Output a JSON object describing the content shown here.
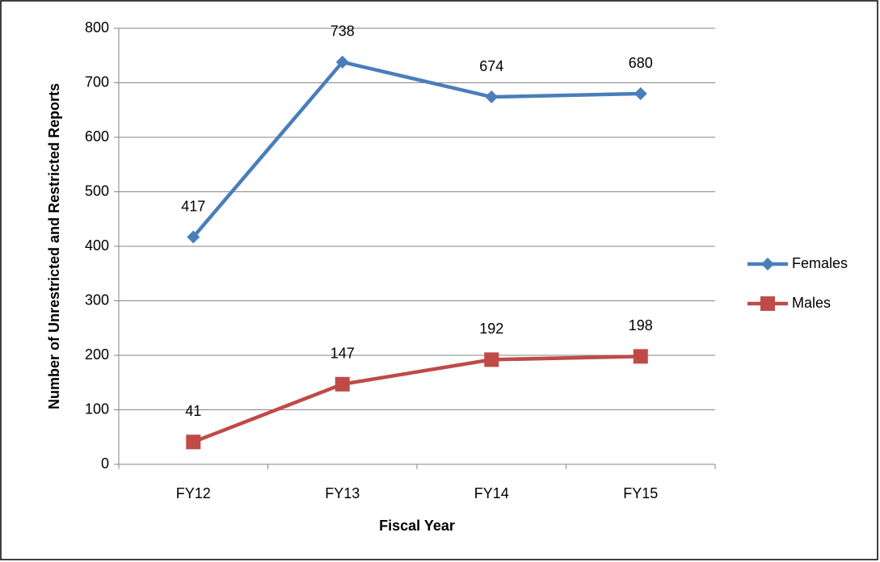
{
  "chart_data": {
    "type": "line",
    "x_label": "Fiscal Year",
    "y_label": "Number of Unrestricted and Restricted Reports",
    "categories": [
      "FY12",
      "FY13",
      "FY14",
      "FY15"
    ],
    "series": [
      {
        "name": "Females",
        "color": "#4a7ebb",
        "marker": "diamond",
        "values": [
          417,
          738,
          674,
          680
        ]
      },
      {
        "name": "Males",
        "color": "#be4b48",
        "marker": "square",
        "values": [
          41,
          147,
          192,
          198
        ]
      }
    ],
    "ylim": [
      0,
      800
    ],
    "yticks": [
      0,
      100,
      200,
      300,
      400,
      500,
      600,
      700,
      800
    ],
    "grid": true,
    "legend": "right"
  }
}
